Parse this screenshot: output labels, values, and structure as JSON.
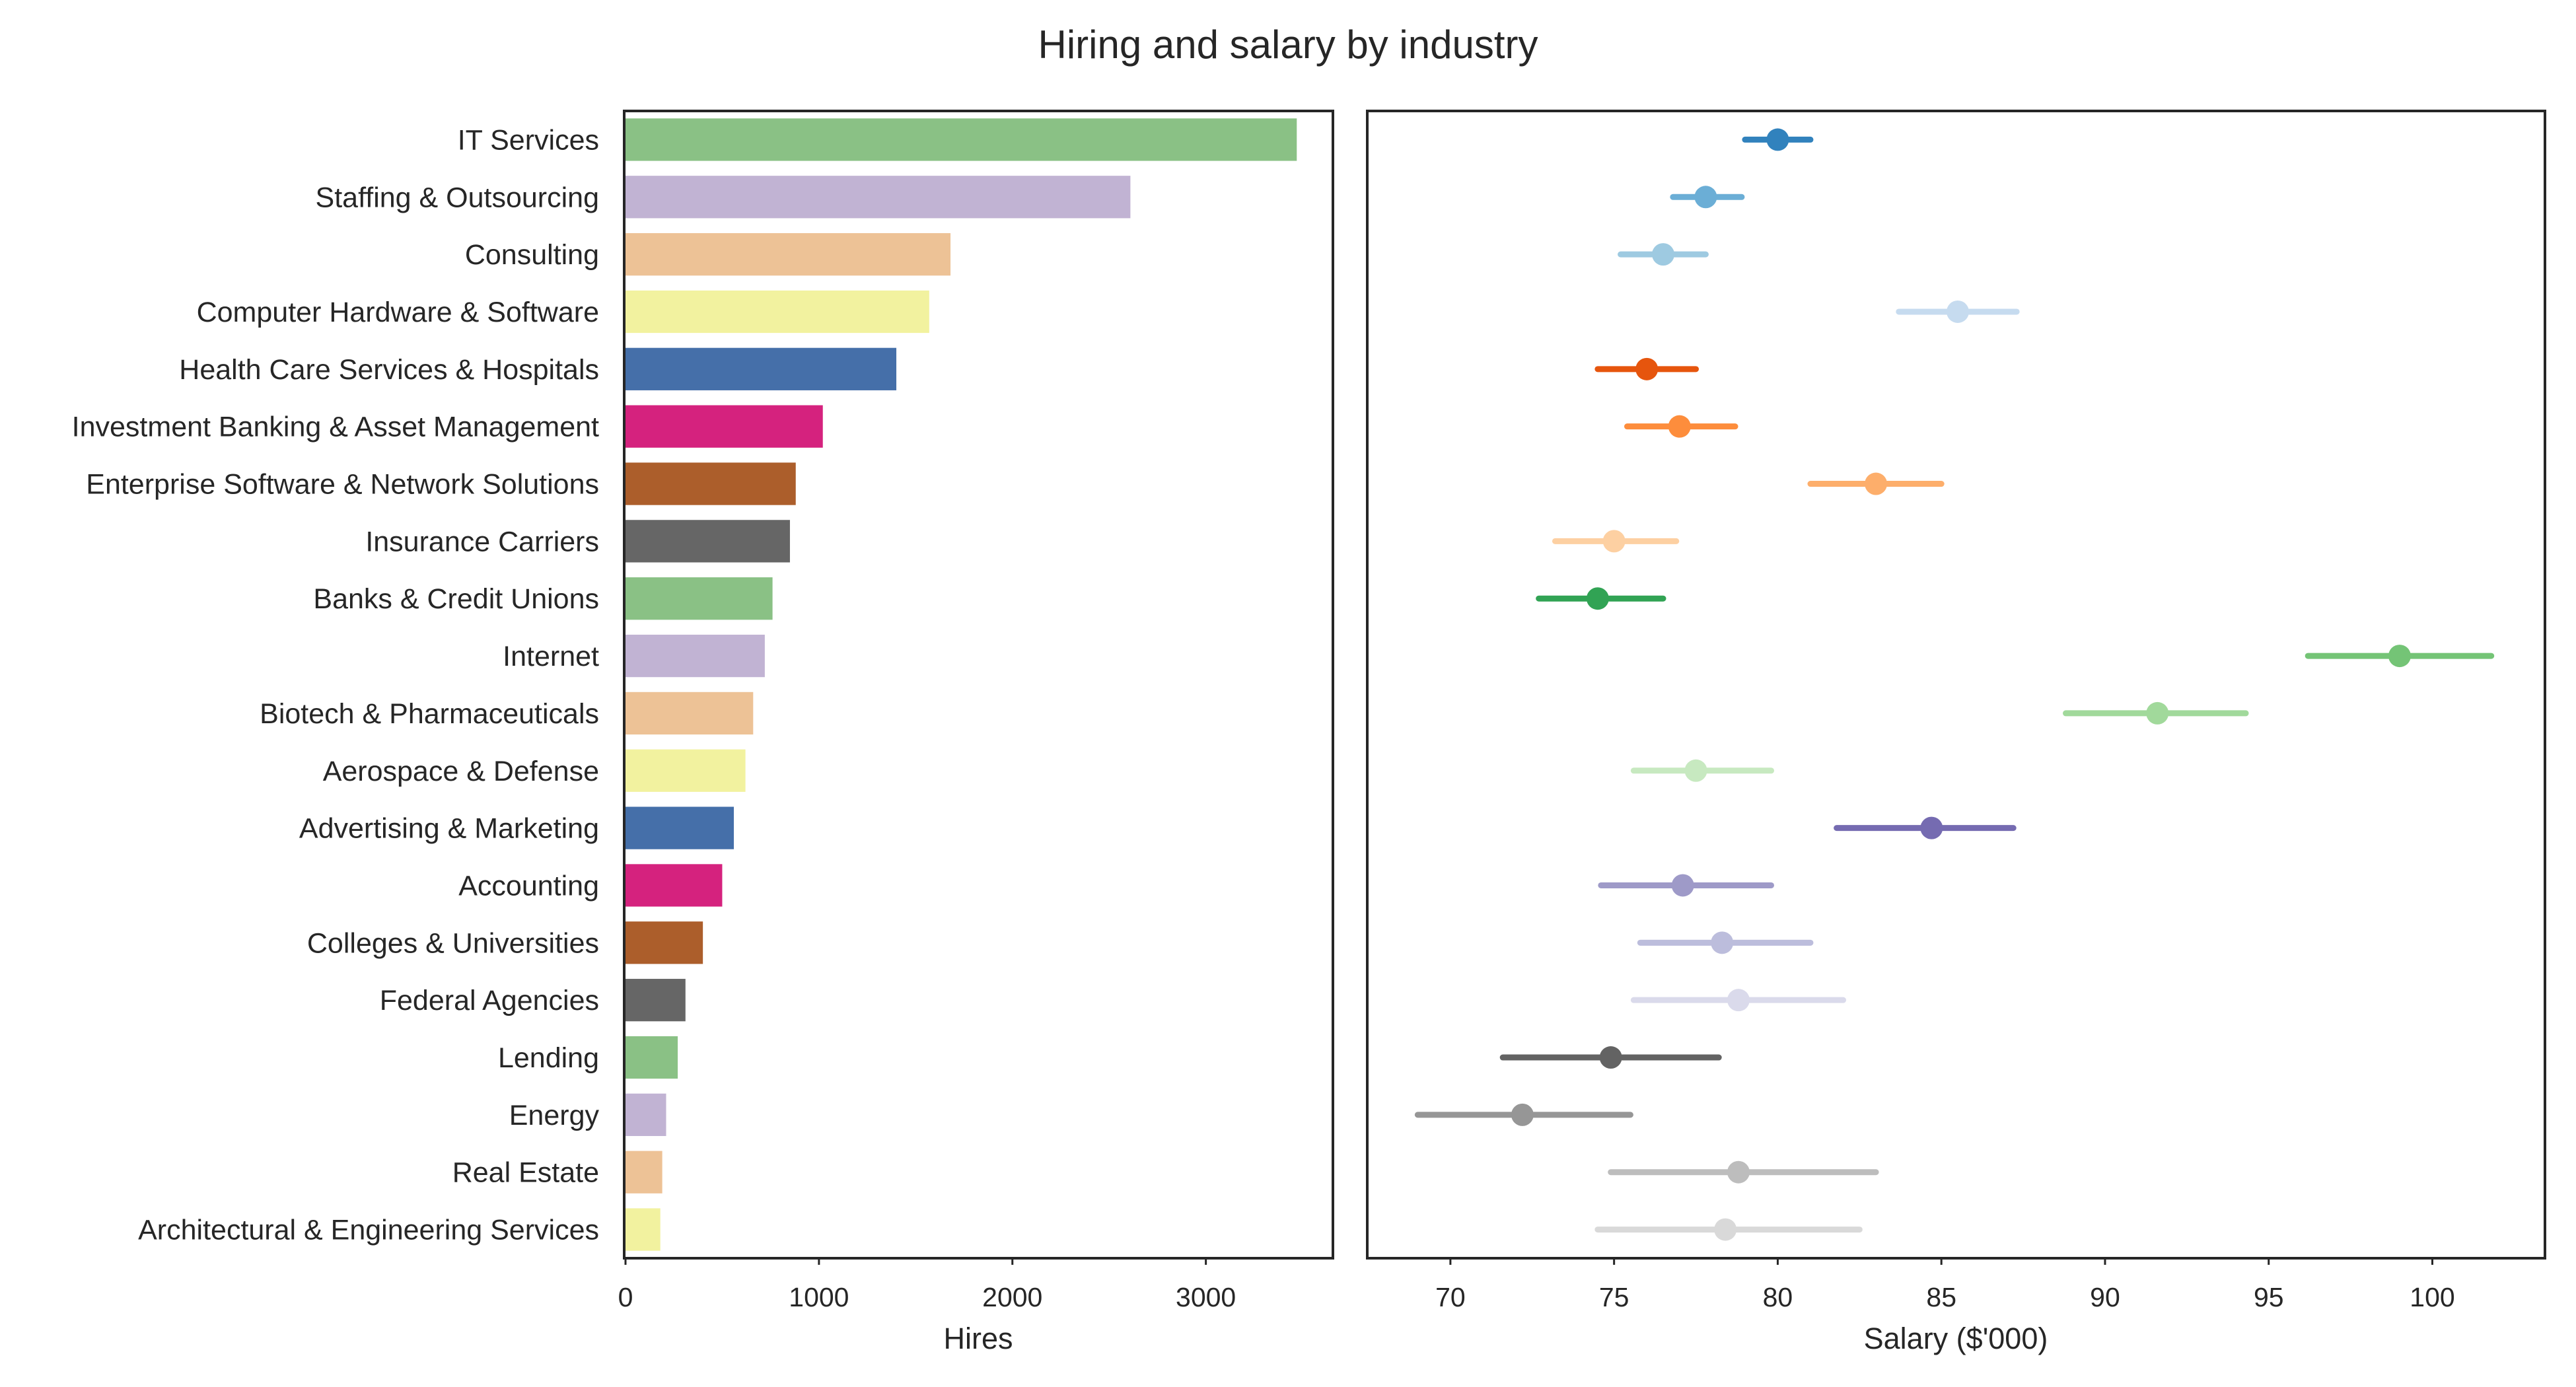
{
  "title": "Hiring and salary by industry",
  "chart_data": [
    {
      "type": "bar",
      "orientation": "horizontal",
      "xlabel": "Hires",
      "ylabel": "",
      "xlim": [
        0,
        3650
      ],
      "xticks": [
        0,
        1000,
        2000,
        3000
      ],
      "grid": false,
      "categories": [
        "IT Services",
        "Staffing & Outsourcing",
        "Consulting",
        "Computer Hardware & Software",
        "Health Care Services & Hospitals",
        "Investment Banking & Asset Management",
        "Enterprise Software & Network Solutions",
        "Insurance Carriers",
        "Banks & Credit Unions",
        "Internet",
        "Biotech & Pharmaceuticals",
        "Aerospace & Defense",
        "Advertising & Marketing",
        "Accounting",
        "Colleges & Universities",
        "Federal Agencies",
        "Lending",
        "Energy",
        "Real Estate",
        "Architectural & Engineering Services"
      ],
      "values": [
        3470,
        2610,
        1680,
        1570,
        1400,
        1020,
        880,
        850,
        760,
        720,
        660,
        620,
        560,
        500,
        400,
        310,
        270,
        210,
        190,
        180
      ],
      "colors": [
        "#8ac185",
        "#c1b3d3",
        "#edc296",
        "#f2f29f",
        "#456fa9",
        "#d5227e",
        "#ac5e2b",
        "#666666",
        "#8ac185",
        "#c1b3d3",
        "#edc296",
        "#f2f29f",
        "#456fa9",
        "#d5227e",
        "#ac5e2b",
        "#666666",
        "#8ac185",
        "#c1b3d3",
        "#edc296",
        "#f2f29f"
      ]
    },
    {
      "type": "scatter",
      "subtype": "point-with-error-bars",
      "xlabel": "Salary ($'000)",
      "ylabel": "",
      "xlim": [
        67.5,
        103.4
      ],
      "xticks": [
        70,
        75,
        80,
        85,
        90,
        95,
        100
      ],
      "grid": false,
      "categories": [
        "IT Services",
        "Staffing & Outsourcing",
        "Consulting",
        "Computer Hardware & Software",
        "Health Care Services & Hospitals",
        "Investment Banking & Asset Management",
        "Enterprise Software & Network Solutions",
        "Insurance Carriers",
        "Banks & Credit Unions",
        "Internet",
        "Biotech & Pharmaceuticals",
        "Aerospace & Defense",
        "Advertising & Marketing",
        "Accounting",
        "Colleges & Universities",
        "Federal Agencies",
        "Lending",
        "Energy",
        "Real Estate",
        "Architectural & Engineering Services"
      ],
      "mean": [
        80.0,
        77.8,
        76.5,
        85.5,
        76.0,
        77.0,
        83.0,
        75.0,
        74.5,
        99.0,
        91.6,
        77.5,
        84.7,
        77.1,
        78.3,
        78.8,
        74.9,
        72.2,
        78.8,
        78.4
      ],
      "ci_low": [
        79.0,
        76.8,
        75.2,
        83.7,
        74.5,
        75.4,
        81.0,
        73.2,
        72.7,
        96.2,
        88.8,
        75.6,
        81.8,
        74.6,
        75.8,
        75.6,
        71.6,
        69.0,
        74.9,
        74.5
      ],
      "ci_high": [
        81.0,
        78.9,
        77.8,
        87.3,
        77.5,
        78.7,
        85.0,
        76.9,
        76.5,
        101.8,
        94.3,
        79.8,
        87.2,
        79.8,
        81.0,
        82.0,
        78.2,
        75.5,
        83.0,
        82.5
      ],
      "colors": [
        "#3182bd",
        "#6baed6",
        "#9ecae1",
        "#c6dbef",
        "#e6550d",
        "#fd8d3c",
        "#fdae6b",
        "#fdd0a2",
        "#31a354",
        "#74c476",
        "#a1d99b",
        "#c7e9c0",
        "#756bb1",
        "#9e9ac8",
        "#bcbddc",
        "#dadaeb",
        "#636363",
        "#969696",
        "#bdbdbd",
        "#d9d9d9"
      ]
    }
  ]
}
